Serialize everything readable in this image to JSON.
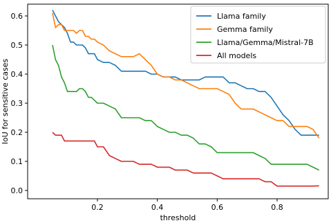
{
  "chart_data": {
    "type": "line",
    "title": "",
    "xlabel": "threshold",
    "ylabel": "IoU for sensitive cases",
    "xlim": [
      0.0,
      1.0
    ],
    "ylim": [
      -0.01,
      0.65
    ],
    "xticks": [
      0.2,
      0.4,
      0.6,
      0.8
    ],
    "yticks": [
      0.0,
      0.1,
      0.2,
      0.3,
      0.4,
      0.5,
      0.6
    ],
    "xtick_labels": [
      "0.2",
      "0.4",
      "0.6",
      "0.8"
    ],
    "ytick_labels": [
      "0.0",
      "0.1",
      "0.2",
      "0.3",
      "0.4",
      "0.5",
      "0.6"
    ],
    "grid": false,
    "legend_position": "top-right",
    "series": [
      {
        "name": "Llama family",
        "color": "#1f77b4",
        "x": [
          0.05,
          0.06,
          0.07,
          0.08,
          0.09,
          0.1,
          0.11,
          0.12,
          0.13,
          0.14,
          0.15,
          0.16,
          0.17,
          0.18,
          0.19,
          0.2,
          0.22,
          0.24,
          0.26,
          0.28,
          0.3,
          0.32,
          0.34,
          0.36,
          0.38,
          0.4,
          0.42,
          0.44,
          0.46,
          0.48,
          0.5,
          0.52,
          0.54,
          0.56,
          0.58,
          0.6,
          0.62,
          0.64,
          0.66,
          0.68,
          0.7,
          0.72,
          0.74,
          0.76,
          0.78,
          0.8,
          0.82,
          0.84,
          0.86,
          0.88,
          0.9,
          0.92,
          0.94
        ],
        "y": [
          0.62,
          0.6,
          0.58,
          0.57,
          0.56,
          0.54,
          0.51,
          0.51,
          0.5,
          0.5,
          0.5,
          0.49,
          0.47,
          0.47,
          0.47,
          0.45,
          0.44,
          0.44,
          0.43,
          0.41,
          0.41,
          0.41,
          0.41,
          0.41,
          0.4,
          0.4,
          0.39,
          0.39,
          0.39,
          0.38,
          0.38,
          0.38,
          0.38,
          0.39,
          0.39,
          0.39,
          0.39,
          0.37,
          0.37,
          0.36,
          0.35,
          0.35,
          0.34,
          0.34,
          0.32,
          0.29,
          0.26,
          0.24,
          0.21,
          0.19,
          0.19,
          0.19,
          0.19
        ]
      },
      {
        "name": "Gemma family",
        "color": "#ff7f0e",
        "x": [
          0.05,
          0.06,
          0.07,
          0.08,
          0.09,
          0.1,
          0.11,
          0.12,
          0.13,
          0.14,
          0.15,
          0.16,
          0.17,
          0.18,
          0.19,
          0.2,
          0.22,
          0.24,
          0.26,
          0.28,
          0.3,
          0.32,
          0.34,
          0.36,
          0.38,
          0.4,
          0.42,
          0.44,
          0.46,
          0.48,
          0.5,
          0.52,
          0.54,
          0.56,
          0.58,
          0.6,
          0.62,
          0.64,
          0.66,
          0.68,
          0.7,
          0.72,
          0.74,
          0.76,
          0.78,
          0.8,
          0.82,
          0.84,
          0.86,
          0.88,
          0.9,
          0.92,
          0.94
        ],
        "y": [
          0.61,
          0.56,
          0.57,
          0.57,
          0.55,
          0.55,
          0.55,
          0.55,
          0.54,
          0.55,
          0.55,
          0.53,
          0.53,
          0.52,
          0.52,
          0.51,
          0.5,
          0.48,
          0.47,
          0.46,
          0.46,
          0.46,
          0.47,
          0.45,
          0.43,
          0.4,
          0.39,
          0.39,
          0.38,
          0.38,
          0.37,
          0.36,
          0.35,
          0.35,
          0.35,
          0.35,
          0.34,
          0.33,
          0.3,
          0.28,
          0.28,
          0.28,
          0.27,
          0.26,
          0.25,
          0.24,
          0.24,
          0.22,
          0.22,
          0.22,
          0.22,
          0.21,
          0.18
        ]
      },
      {
        "name": "Llama/Gemma/Mistral-7B",
        "color": "#2ca02c",
        "x": [
          0.05,
          0.06,
          0.07,
          0.08,
          0.09,
          0.1,
          0.11,
          0.12,
          0.13,
          0.14,
          0.15,
          0.16,
          0.17,
          0.18,
          0.19,
          0.2,
          0.22,
          0.24,
          0.26,
          0.28,
          0.3,
          0.32,
          0.34,
          0.36,
          0.38,
          0.4,
          0.42,
          0.44,
          0.46,
          0.48,
          0.5,
          0.52,
          0.54,
          0.56,
          0.58,
          0.6,
          0.62,
          0.64,
          0.66,
          0.68,
          0.7,
          0.72,
          0.74,
          0.76,
          0.78,
          0.8,
          0.82,
          0.84,
          0.86,
          0.88,
          0.9,
          0.92,
          0.94
        ],
        "y": [
          0.5,
          0.45,
          0.43,
          0.39,
          0.37,
          0.34,
          0.34,
          0.34,
          0.34,
          0.35,
          0.35,
          0.34,
          0.32,
          0.32,
          0.31,
          0.3,
          0.3,
          0.29,
          0.28,
          0.25,
          0.25,
          0.25,
          0.25,
          0.24,
          0.24,
          0.22,
          0.21,
          0.2,
          0.2,
          0.19,
          0.19,
          0.18,
          0.16,
          0.16,
          0.15,
          0.13,
          0.13,
          0.13,
          0.13,
          0.13,
          0.13,
          0.13,
          0.12,
          0.11,
          0.09,
          0.09,
          0.09,
          0.09,
          0.09,
          0.09,
          0.09,
          0.08,
          0.07
        ]
      },
      {
        "name": "All models",
        "color": "#d62728",
        "x": [
          0.05,
          0.06,
          0.07,
          0.08,
          0.09,
          0.1,
          0.11,
          0.12,
          0.13,
          0.14,
          0.15,
          0.16,
          0.17,
          0.18,
          0.19,
          0.2,
          0.22,
          0.24,
          0.26,
          0.28,
          0.3,
          0.32,
          0.34,
          0.36,
          0.38,
          0.4,
          0.42,
          0.44,
          0.46,
          0.48,
          0.5,
          0.52,
          0.54,
          0.56,
          0.58,
          0.6,
          0.62,
          0.64,
          0.66,
          0.68,
          0.7,
          0.72,
          0.74,
          0.76,
          0.78,
          0.8,
          0.82,
          0.84,
          0.86,
          0.88,
          0.9,
          0.92,
          0.94
        ],
        "y": [
          0.2,
          0.19,
          0.19,
          0.19,
          0.17,
          0.17,
          0.17,
          0.17,
          0.17,
          0.17,
          0.17,
          0.17,
          0.17,
          0.17,
          0.17,
          0.15,
          0.15,
          0.12,
          0.11,
          0.1,
          0.1,
          0.1,
          0.09,
          0.09,
          0.09,
          0.08,
          0.08,
          0.08,
          0.07,
          0.07,
          0.07,
          0.06,
          0.06,
          0.06,
          0.06,
          0.05,
          0.04,
          0.04,
          0.04,
          0.04,
          0.04,
          0.04,
          0.04,
          0.03,
          0.03,
          0.015,
          0.015,
          0.015,
          0.015,
          0.015,
          0.015,
          0.015,
          0.016
        ]
      }
    ]
  }
}
